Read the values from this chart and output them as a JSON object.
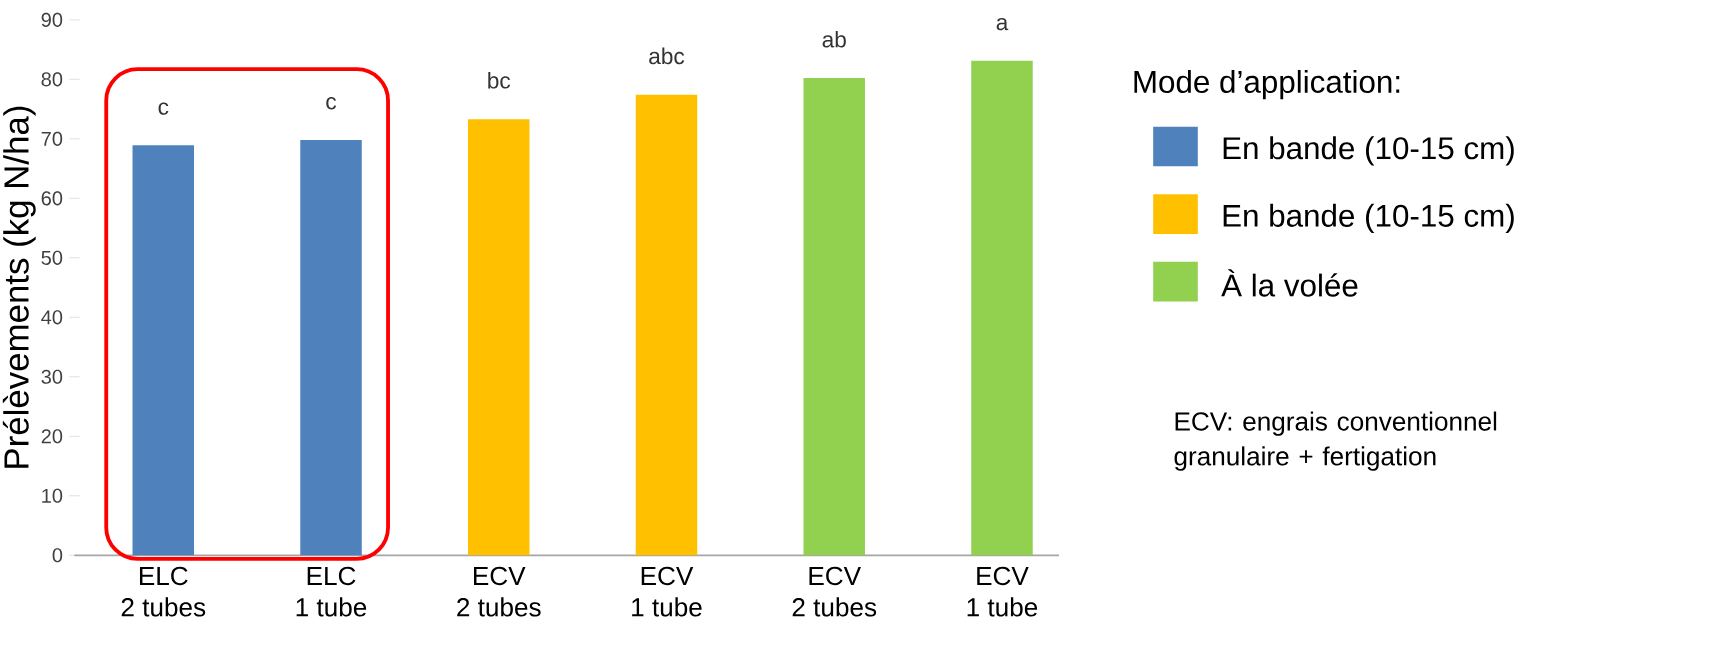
{
  "chart_data": {
    "type": "bar",
    "ylabel": "Prélèvements (kg N/ha)",
    "categories": [
      "ELC\n2 tubes",
      "ELC\n1 tube",
      "ECV\n2 tubes",
      "ECV\n1 tube",
      "ECV\n2 tubes",
      "ECV\n1 tube"
    ],
    "series": [
      {
        "name": "En bande (10-15 cm)",
        "color": "#4f81bd",
        "values": [
          68.9,
          69.8,
          null,
          null,
          null,
          null
        ],
        "value_labels": [
          "c",
          "c",
          null,
          null,
          null,
          null
        ]
      },
      {
        "name": "En bande (10-15 cm)",
        "color": "#ffc000",
        "values": [
          null,
          null,
          73.3,
          77.4,
          null,
          null
        ],
        "value_labels": [
          null,
          null,
          "bc",
          "abc",
          null,
          null
        ]
      },
      {
        "name": "À la volée",
        "color": "#92d050",
        "values": [
          null,
          null,
          null,
          null,
          80.2,
          83.1
        ],
        "value_labels": [
          null,
          null,
          null,
          null,
          "ab",
          "a"
        ]
      }
    ],
    "ylim": [
      0,
      90
    ],
    "yticks": [
      0,
      10,
      20,
      30,
      40,
      50,
      60,
      70,
      80,
      90
    ],
    "legend": "right",
    "legend_title": "Mode d’application:",
    "annotations": [
      "ECV: engrais conventionnel granulaire + fertigation"
    ]
  }
}
